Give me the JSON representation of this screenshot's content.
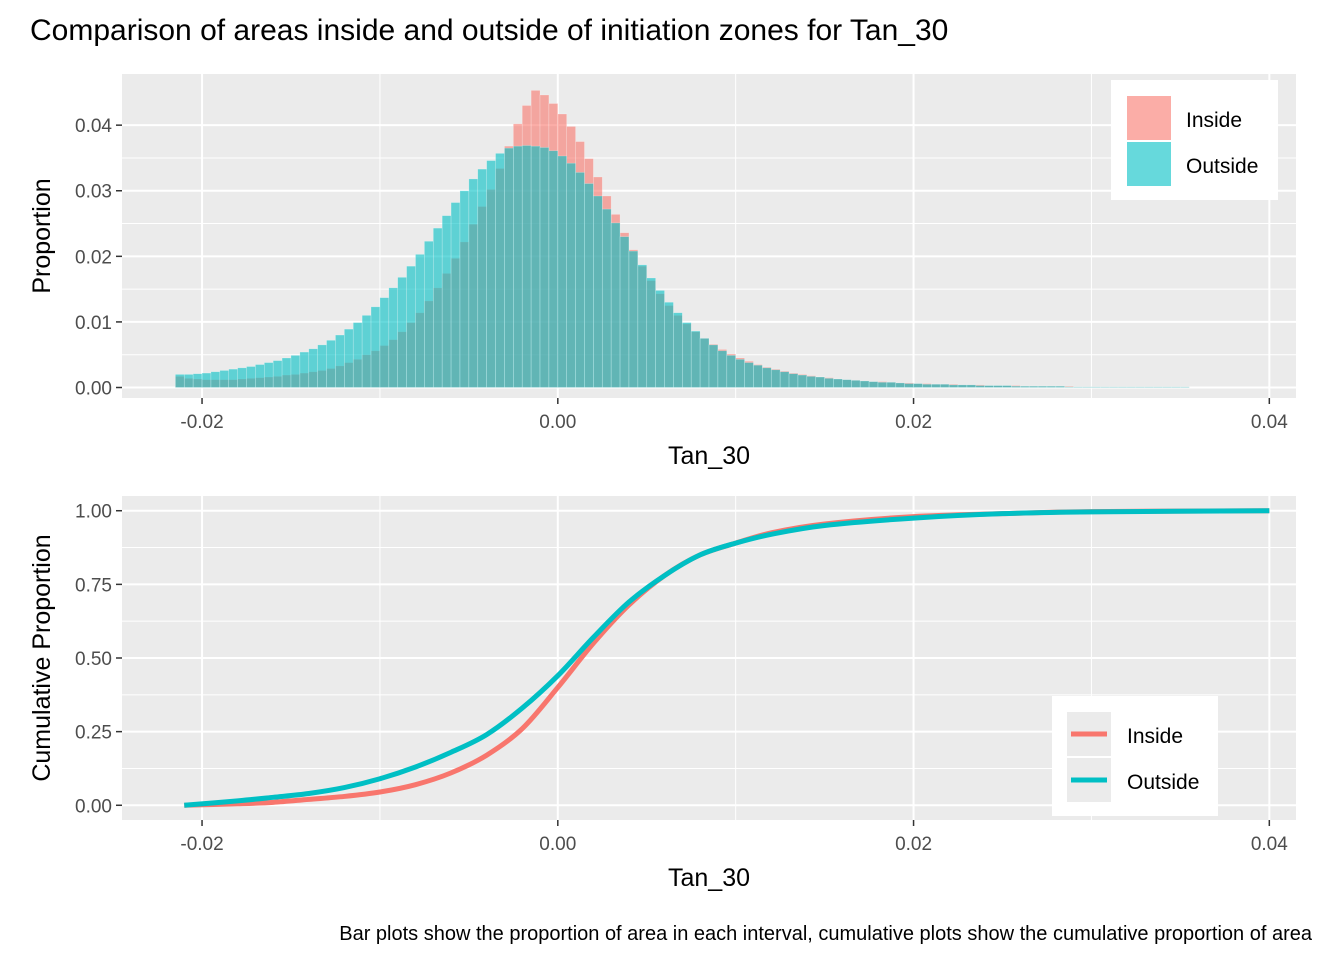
{
  "title": "Comparison of areas inside and outside of initiation zones for Tan_30",
  "caption": "Bar plots show the proportion of area in each interval, cumulative plots show the cumulative proportion of area",
  "colors": {
    "inside": "#F8766D",
    "outside": "#00BFC4",
    "panel": "#EBEBEB",
    "grid": "#FFFFFF"
  },
  "chart_data": [
    {
      "type": "bar",
      "xlabel": "Tan_30",
      "ylabel": "Proportion",
      "xlim": [
        -0.0245,
        0.0415
      ],
      "ylim": [
        -0.0016,
        0.0478
      ],
      "xticks": [
        -0.02,
        0.0,
        0.02,
        0.04
      ],
      "xtick_labels": [
        "-0.02",
        "0.00",
        "0.02",
        "0.04"
      ],
      "yticks": [
        0.0,
        0.01,
        0.02,
        0.03,
        0.04
      ],
      "ytick_labels": [
        "0.00",
        "0.01",
        "0.02",
        "0.03",
        "0.04"
      ],
      "grid": true,
      "legend": "top-right",
      "bin_start": -0.0215,
      "bin_width": 0.0005,
      "series": [
        {
          "name": "Inside",
          "color": "#F8766D",
          "values": [
            0.0017,
            0.0014,
            0.0013,
            0.0012,
            0.0012,
            0.0012,
            0.0012,
            0.0013,
            0.0014,
            0.0015,
            0.0016,
            0.0017,
            0.0019,
            0.002,
            0.0022,
            0.0024,
            0.0026,
            0.0029,
            0.0033,
            0.0038,
            0.0043,
            0.005,
            0.0056,
            0.0064,
            0.0073,
            0.0085,
            0.0099,
            0.0114,
            0.0132,
            0.0152,
            0.0174,
            0.0197,
            0.0222,
            0.0249,
            0.0276,
            0.0302,
            0.0334,
            0.0368,
            0.0402,
            0.043,
            0.0453,
            0.0446,
            0.0433,
            0.0417,
            0.0398,
            0.0375,
            0.0349,
            0.0321,
            0.0292,
            0.0264,
            0.0236,
            0.021,
            0.0185,
            0.0163,
            0.0143,
            0.0125,
            0.011,
            0.0097,
            0.0085,
            0.0075,
            0.0066,
            0.0058,
            0.0051,
            0.0045,
            0.004,
            0.0035,
            0.0031,
            0.0028,
            0.0025,
            0.0022,
            0.002,
            0.0018,
            0.0016,
            0.0015,
            0.0013,
            0.0012,
            0.0011,
            0.001,
            0.0009,
            0.0009,
            0.0008,
            0.0007,
            0.0007,
            0.0006,
            0.0006,
            0.0005,
            0.0005,
            0.0005,
            0.0004,
            0.0004,
            0.0004,
            0.0003,
            0.0003,
            0.0003,
            0.0003,
            0.0002,
            0.0002,
            0.0002,
            0.0002,
            0.0002,
            0.0002,
            0.0001,
            0.0001,
            0.0001,
            0.0001,
            0.0001,
            0.0001,
            0.0001,
            0.0001,
            0.0001,
            0.0001,
            0.0001,
            0.0001,
            0.0001,
            0.0,
            0.0,
            0.0,
            0.0,
            0.0,
            0.0,
            0.0,
            0.0,
            0.0,
            0.0,
            0.0
          ]
        },
        {
          "name": "Outside",
          "color": "#00BFC4",
          "values": [
            0.002,
            0.002,
            0.0021,
            0.0022,
            0.0024,
            0.0026,
            0.0028,
            0.003,
            0.0032,
            0.0035,
            0.0038,
            0.0041,
            0.0045,
            0.0049,
            0.0054,
            0.0059,
            0.0065,
            0.0072,
            0.008,
            0.0089,
            0.0099,
            0.011,
            0.0123,
            0.0137,
            0.0152,
            0.0168,
            0.0185,
            0.0203,
            0.0223,
            0.0243,
            0.0262,
            0.0282,
            0.03,
            0.0318,
            0.0333,
            0.0346,
            0.0357,
            0.0365,
            0.0368,
            0.0369,
            0.0368,
            0.0366,
            0.0361,
            0.0353,
            0.0342,
            0.0328,
            0.0311,
            0.0292,
            0.0272,
            0.0251,
            0.023,
            0.0208,
            0.0187,
            0.0167,
            0.0148,
            0.013,
            0.0114,
            0.0099,
            0.0086,
            0.0075,
            0.0065,
            0.0056,
            0.0049,
            0.0043,
            0.0038,
            0.0034,
            0.003,
            0.0027,
            0.0024,
            0.0021,
            0.0019,
            0.0017,
            0.0016,
            0.0014,
            0.0013,
            0.0012,
            0.0011,
            0.001,
            0.0009,
            0.0008,
            0.0008,
            0.0007,
            0.0006,
            0.0006,
            0.0005,
            0.0005,
            0.0005,
            0.0004,
            0.0004,
            0.0004,
            0.0003,
            0.0003,
            0.0003,
            0.0003,
            0.0002,
            0.0002,
            0.0002,
            0.0002,
            0.0002,
            0.0002,
            0.0001,
            0.0001,
            0.0001,
            0.0001,
            0.0001,
            0.0001,
            0.0001,
            0.0001,
            0.0001,
            0.0001,
            0.0001,
            0.0001,
            0.0001,
            0.0001,
            0.0,
            0.0,
            0.0,
            0.0,
            0.0,
            0.0,
            0.0,
            0.0,
            0.0,
            0.0,
            0.0
          ]
        }
      ]
    },
    {
      "type": "line",
      "xlabel": "Tan_30",
      "ylabel": "Cumulative Proportion",
      "xlim": [
        -0.0245,
        0.0415
      ],
      "ylim": [
        -0.05,
        1.05
      ],
      "xticks": [
        -0.02,
        0.0,
        0.02,
        0.04
      ],
      "xtick_labels": [
        "-0.02",
        "0.00",
        "0.02",
        "0.04"
      ],
      "yticks": [
        0.0,
        0.25,
        0.5,
        0.75,
        1.0
      ],
      "ytick_labels": [
        "0.00",
        "0.25",
        "0.50",
        "0.75",
        "1.00"
      ],
      "grid": true,
      "legend": "bottom-right",
      "series": [
        {
          "name": "Inside",
          "color": "#F8766D",
          "x": [
            -0.021,
            -0.018,
            -0.016,
            -0.014,
            -0.012,
            -0.01,
            -0.008,
            -0.006,
            -0.004,
            -0.002,
            0.0,
            0.002,
            0.004,
            0.006,
            0.008,
            0.01,
            0.012,
            0.015,
            0.02,
            0.025,
            0.03,
            0.04
          ],
          "y": [
            0.0,
            0.005,
            0.01,
            0.02,
            0.03,
            0.045,
            0.07,
            0.11,
            0.17,
            0.26,
            0.4,
            0.55,
            0.68,
            0.78,
            0.85,
            0.89,
            0.925,
            0.955,
            0.98,
            0.99,
            0.997,
            1.0
          ]
        },
        {
          "name": "Outside",
          "color": "#00BFC4",
          "x": [
            -0.021,
            -0.018,
            -0.016,
            -0.014,
            -0.012,
            -0.01,
            -0.008,
            -0.006,
            -0.004,
            -0.002,
            0.0,
            0.002,
            0.004,
            0.006,
            0.008,
            0.01,
            0.012,
            0.015,
            0.02,
            0.025,
            0.03,
            0.04
          ],
          "y": [
            0.0,
            0.015,
            0.027,
            0.04,
            0.06,
            0.09,
            0.13,
            0.18,
            0.24,
            0.33,
            0.44,
            0.57,
            0.69,
            0.78,
            0.85,
            0.89,
            0.92,
            0.95,
            0.975,
            0.99,
            0.996,
            1.0
          ]
        }
      ]
    }
  ]
}
